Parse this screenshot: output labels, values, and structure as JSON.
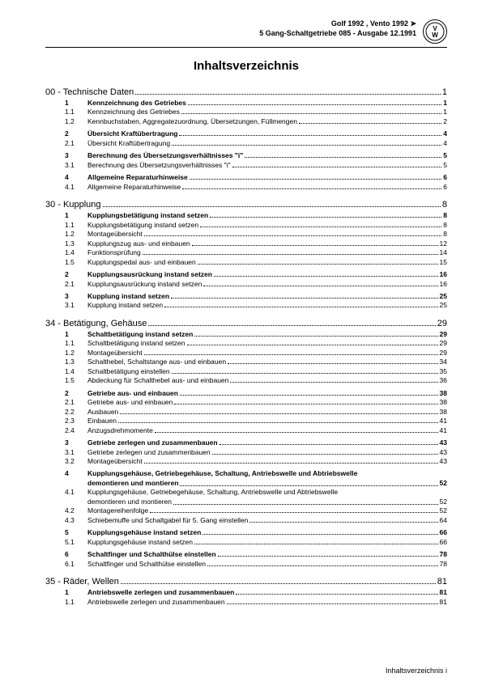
{
  "header": {
    "line1": "Golf 1992 , Vento 1992 ➤",
    "line2": "5 Gang-Schaltgetriebe 085 - Ausgabe 12.1991"
  },
  "title": "Inhaltsverzeichnis",
  "footer": "Inhaltsverzeichnis i",
  "sections": [
    {
      "num": "00",
      "label": "Technische Daten",
      "page": "1",
      "entries": [
        {
          "n": "1",
          "t": "Kennzeichnung des Getriebes",
          "p": "1",
          "b": true
        },
        {
          "n": "1.1",
          "t": "Kennzeichnung des Getriebes",
          "p": "1"
        },
        {
          "n": "1.2",
          "t": "Kennbuchstaben, Aggregatezuordnung, Übersetzungen, Füllmengen",
          "p": "2"
        },
        {
          "n": "2",
          "t": "Übersicht Kraftübertragung",
          "p": "4",
          "b": true,
          "sp": true
        },
        {
          "n": "2.1",
          "t": "Übersicht Kraftübertragung",
          "p": "4"
        },
        {
          "n": "3",
          "t": "Berechnung des Übersetzungsverhältnisses \"i\"",
          "p": "5",
          "b": true,
          "sp": true
        },
        {
          "n": "3.1",
          "t": "Berechnung des Übersetzungsverhältnisses \"i\"",
          "p": "5"
        },
        {
          "n": "4",
          "t": "Allgemeine Reparaturhinweise",
          "p": "6",
          "b": true,
          "sp": true
        },
        {
          "n": "4.1",
          "t": "Allgemeine Reparaturhinweise",
          "p": "6"
        }
      ]
    },
    {
      "num": "30",
      "label": "Kupplung",
      "page": "8",
      "entries": [
        {
          "n": "1",
          "t": "Kupplungsbetätigung instand setzen",
          "p": "8",
          "b": true
        },
        {
          "n": "1.1",
          "t": "Kupplungsbetätigung instand setzen",
          "p": "8"
        },
        {
          "n": "1.2",
          "t": "Montageübersicht",
          "p": "8"
        },
        {
          "n": "1.3",
          "t": "Kupplungszug aus- und einbauen",
          "p": "12"
        },
        {
          "n": "1.4",
          "t": "Funktionsprüfung",
          "p": "14"
        },
        {
          "n": "1.5",
          "t": "Kupplungspedal aus- und einbauen",
          "p": "15"
        },
        {
          "n": "2",
          "t": "Kupplungsausrückung instand setzen",
          "p": "16",
          "b": true,
          "sp": true
        },
        {
          "n": "2.1",
          "t": "Kupplungsausrückung instand setzen",
          "p": "16"
        },
        {
          "n": "3",
          "t": "Kupplung instand setzen",
          "p": "25",
          "b": true,
          "sp": true
        },
        {
          "n": "3.1",
          "t": "Kupplung instand setzen",
          "p": "25"
        }
      ]
    },
    {
      "num": "34",
      "label": "Betätigung, Gehäuse",
      "page": "29",
      "entries": [
        {
          "n": "1",
          "t": "Schaltbetätigung instand setzen",
          "p": "29",
          "b": true
        },
        {
          "n": "1.1",
          "t": "Schaltbetätigung instand setzen",
          "p": "29"
        },
        {
          "n": "1.2",
          "t": "Montageübersicht",
          "p": "29"
        },
        {
          "n": "1.3",
          "t": "Schalthebel, Schaltstange aus- und einbauen",
          "p": "34"
        },
        {
          "n": "1.4",
          "t": "Schaltbetätigung einstellen",
          "p": "35"
        },
        {
          "n": "1.5",
          "t": "Abdeckung für Schalthebel aus- und einbauen",
          "p": "36"
        },
        {
          "n": "2",
          "t": "Getriebe aus- und einbauen",
          "p": "38",
          "b": true,
          "sp": true
        },
        {
          "n": "2.1",
          "t": "Getriebe aus- und einbauen",
          "p": "38"
        },
        {
          "n": "2.2",
          "t": "Ausbauen",
          "p": "38"
        },
        {
          "n": "2.3",
          "t": "Einbauen",
          "p": "41"
        },
        {
          "n": "2.4",
          "t": "Anzugsdrehmomente",
          "p": "41"
        },
        {
          "n": "3",
          "t": "Getriebe zerlegen und zusammenbauen",
          "p": "43",
          "b": true,
          "sp": true
        },
        {
          "n": "3.1",
          "t": "Getriebe zerlegen und zusammenbauen",
          "p": "43"
        },
        {
          "n": "3.2",
          "t": "Montageübersicht",
          "p": "43"
        },
        {
          "n": "4",
          "t": "Kupplungsgehäuse, Getriebegehäuse, Schaltung, Antriebswelle und Abtriebswelle",
          "t2": "demontieren und montieren",
          "p": "52",
          "b": true,
          "sp": true,
          "ml": true
        },
        {
          "n": "4.1",
          "t": "Kupplungsgehäuse, Getriebegehäuse, Schaltung, Antriebswelle und Abtriebswelle",
          "t2": "demontieren und montieren",
          "p": "52",
          "ml": true
        },
        {
          "n": "4.2",
          "t": "Montagereihenfolge",
          "p": "52"
        },
        {
          "n": "4.3",
          "t": "Schiebemuffe und Schaltgabel für 5. Gang einstellen",
          "p": "64"
        },
        {
          "n": "5",
          "t": "Kupplungsgehäuse instand setzen",
          "p": "66",
          "b": true,
          "sp": true
        },
        {
          "n": "5.1",
          "t": "Kupplungsgehäuse instand setzen",
          "p": "66"
        },
        {
          "n": "6",
          "t": "Schaltfinger und Schalthülse einstellen",
          "p": "78",
          "b": true,
          "sp": true
        },
        {
          "n": "6.1",
          "t": "Schaltfinger und Schalthülse einstellen",
          "p": "78"
        }
      ]
    },
    {
      "num": "35",
      "label": "Räder, Wellen",
      "page": "81",
      "entries": [
        {
          "n": "1",
          "t": "Antriebswelle zerlegen und zusammenbauen",
          "p": "81",
          "b": true
        },
        {
          "n": "1.1",
          "t": "Antriebswelle zerlegen und zusammenbauen",
          "p": "81"
        }
      ]
    }
  ]
}
